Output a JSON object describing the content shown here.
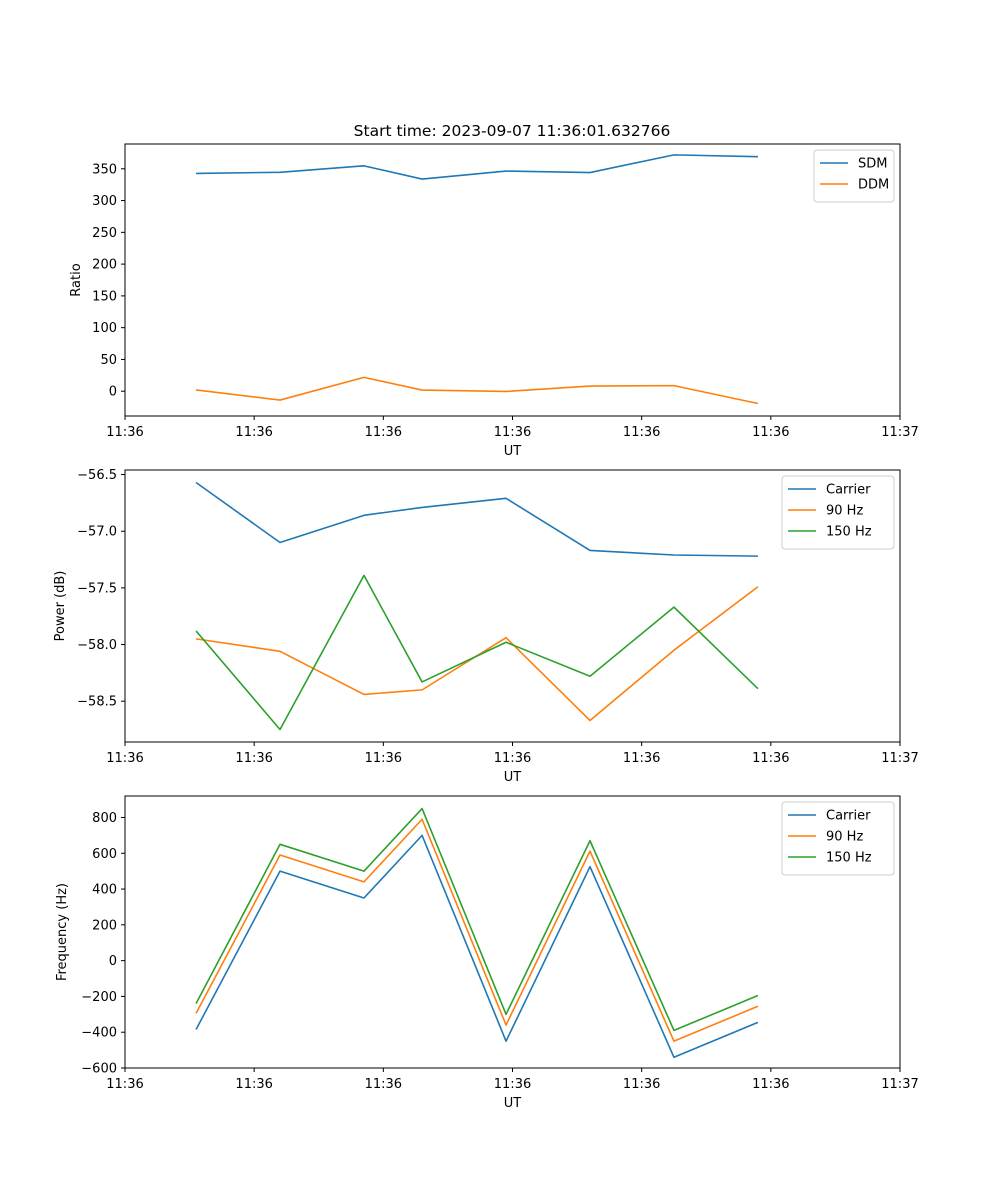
{
  "figure_title": "Start time: 2023-09-07 11:36:01.632766",
  "colors": {
    "blue": "#1f77b4",
    "orange": "#ff7f0e",
    "green": "#2ca02c",
    "axis": "#000000",
    "legend_border": "#cccccc"
  },
  "chart_data": [
    {
      "type": "line",
      "title": "Start time: 2023-09-07 11:36:01.632766",
      "xlabel": "UT",
      "ylabel": "Ratio",
      "x": [
        0.55,
        1.2,
        1.85,
        2.3,
        2.95,
        3.6,
        4.25,
        4.9
      ],
      "xlim": [
        0,
        6
      ],
      "xtick_positions": [
        0,
        1,
        2,
        3,
        4,
        5,
        6
      ],
      "xtick_labels": [
        "11:36",
        "11:36",
        "11:36",
        "11:36",
        "11:36",
        "11:36",
        "11:37"
      ],
      "ylim": [
        -39,
        389
      ],
      "yticks": [
        0,
        50,
        100,
        150,
        200,
        250,
        300,
        350
      ],
      "legend": "top-right",
      "series": [
        {
          "name": "SDM",
          "color": "#1f77b4",
          "values": [
            342.7,
            344.5,
            354.6,
            333.8,
            346.4,
            344.1,
            371.9,
            369.0
          ]
        },
        {
          "name": "DDM",
          "color": "#ff7f0e",
          "values": [
            2.0,
            -13.9,
            21.8,
            1.8,
            -0.4,
            8.1,
            8.8,
            -19.3
          ]
        }
      ]
    },
    {
      "type": "line",
      "title": "",
      "xlabel": "UT",
      "ylabel": "Power (dB)",
      "x": [
        0.55,
        1.2,
        1.85,
        2.3,
        2.95,
        3.6,
        4.25,
        4.9
      ],
      "xlim": [
        0,
        6
      ],
      "xtick_positions": [
        0,
        1,
        2,
        3,
        4,
        5,
        6
      ],
      "xtick_labels": [
        "11:36",
        "11:36",
        "11:36",
        "11:36",
        "11:36",
        "11:36",
        "11:37"
      ],
      "ylim": [
        -58.86,
        -56.46
      ],
      "yticks": [
        -58.5,
        -58.0,
        -57.5,
        -57.0,
        -56.5
      ],
      "ytick_labels": [
        "−58.5",
        "−58.0",
        "−57.5",
        "−57.0",
        "−56.5"
      ],
      "legend": "top-right",
      "series": [
        {
          "name": "Carrier",
          "color": "#1f77b4",
          "values": [
            -56.57,
            -57.1,
            -56.86,
            -56.79,
            -56.71,
            -57.17,
            -57.21,
            -57.22
          ]
        },
        {
          "name": "90 Hz",
          "color": "#ff7f0e",
          "values": [
            -57.95,
            -58.06,
            -58.44,
            -58.4,
            -57.94,
            -58.67,
            -58.05,
            -57.49
          ]
        },
        {
          "name": "150 Hz",
          "color": "#2ca02c",
          "values": [
            -57.88,
            -58.75,
            -57.39,
            -58.33,
            -57.98,
            -58.28,
            -57.67,
            -58.39
          ]
        }
      ]
    },
    {
      "type": "line",
      "title": "",
      "xlabel": "UT",
      "ylabel": "Frequency (Hz)",
      "x": [
        0.55,
        1.2,
        1.85,
        2.3,
        2.95,
        3.6,
        4.25,
        4.9
      ],
      "xlim": [
        0,
        6
      ],
      "xtick_positions": [
        0,
        1,
        2,
        3,
        4,
        5,
        6
      ],
      "xtick_labels": [
        "11:36",
        "11:36",
        "11:36",
        "11:36",
        "11:36",
        "11:36",
        "11:37"
      ],
      "ylim": [
        -600,
        920
      ],
      "yticks": [
        -600,
        -400,
        -200,
        0,
        200,
        400,
        600,
        800
      ],
      "ytick_labels": [
        "−600",
        "−400",
        "−200",
        "0",
        "200",
        "400",
        "600",
        "800"
      ],
      "legend": "top-right",
      "series": [
        {
          "name": "Carrier",
          "color": "#1f77b4",
          "values": [
            -385,
            500,
            350,
            700,
            -450,
            525,
            -540,
            -345
          ]
        },
        {
          "name": "90 Hz",
          "color": "#ff7f0e",
          "values": [
            -295,
            590,
            440,
            790,
            -360,
            612,
            -450,
            -255
          ]
        },
        {
          "name": "150 Hz",
          "color": "#2ca02c",
          "values": [
            -240,
            650,
            500,
            850,
            -300,
            670,
            -390,
            -195
          ]
        }
      ]
    }
  ]
}
